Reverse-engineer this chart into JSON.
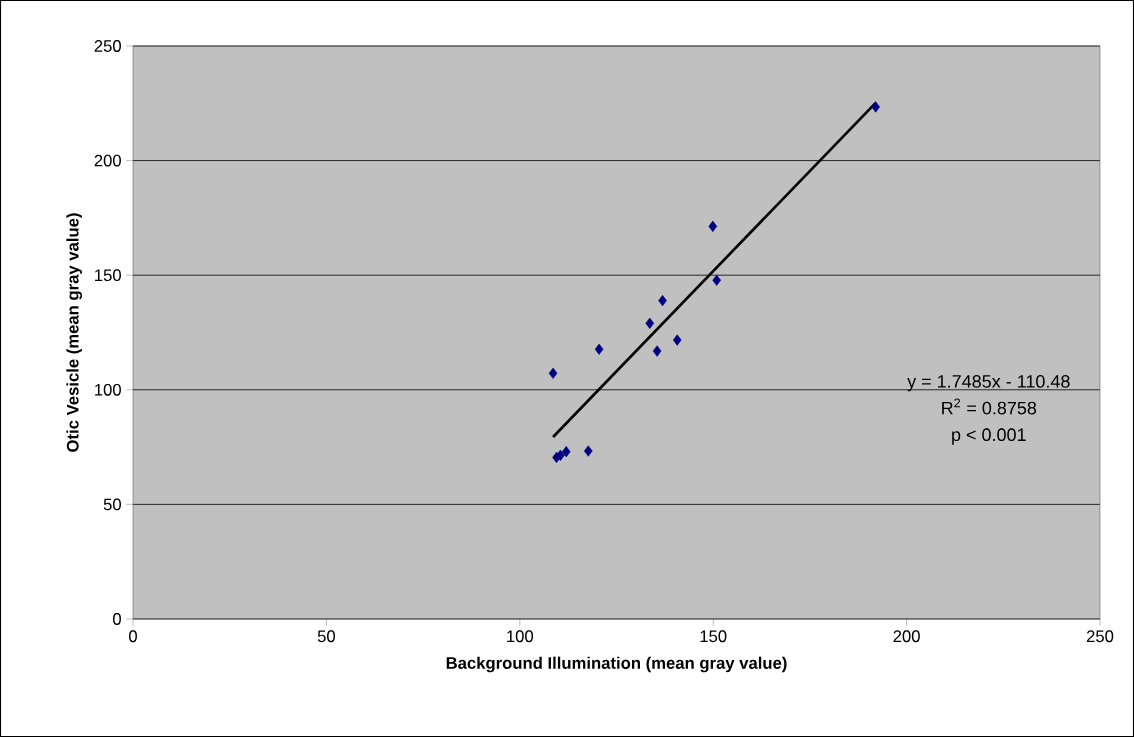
{
  "chart_data": {
    "type": "scatter",
    "xlabel": "Background Illumination (mean gray value)",
    "ylabel": "Otic Vesicle (mean gray value)",
    "xlim": [
      0,
      250
    ],
    "ylim": [
      0,
      250
    ],
    "xticks": [
      0,
      50,
      100,
      150,
      200,
      250
    ],
    "yticks": [
      0,
      50,
      100,
      150,
      200,
      250
    ],
    "grid": "y",
    "marker": "diamond",
    "annotations": [
      "y = 1.7485x - 110.48",
      "R$^{2}$ = 0.8758",
      "p < 0.001"
    ],
    "series": [
      {
        "color": "#000080",
        "x": [
          108.6,
          120.5,
          133.6,
          136.9,
          135.5,
          140.7,
          149.9,
          150.9,
          109.5,
          110.5,
          112,
          117.7,
          192.0
        ],
        "values": [
          107.2,
          117.7,
          129.0,
          138.9,
          116.9,
          121.7,
          171.3,
          147.8,
          70.5,
          71.4,
          73,
          73.3,
          223.4
        ]
      },
      {
        "type": "line",
        "color": "#000000",
        "marker": "none",
        "line_style": "solid",
        "x": [
          108.6,
          192.0
        ],
        "values": [
          79.4,
          225.2
        ]
      }
    ]
  }
}
